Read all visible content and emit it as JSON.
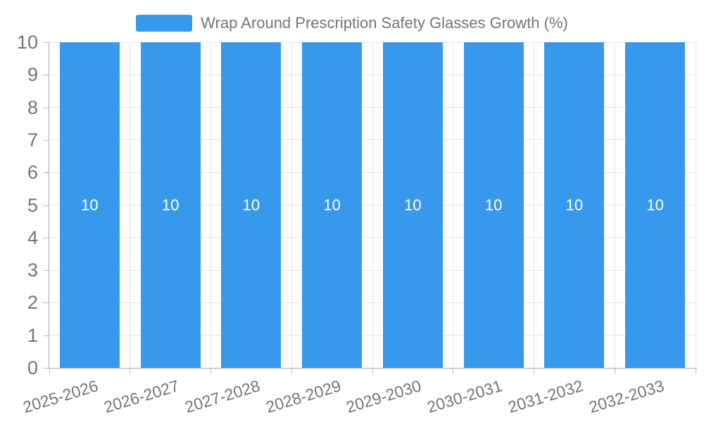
{
  "chart_data": {
    "type": "bar",
    "title": "Wrap Around Prescription Safety Glasses Growth (%)",
    "categories": [
      "2025-2026",
      "2026-2027",
      "2027-2028",
      "2028-2029",
      "2029-2030",
      "2030-2031",
      "2031-2032",
      "2032-2033"
    ],
    "series": [
      {
        "name": "Wrap Around Prescription Safety Glasses Growth (%)",
        "values": [
          10,
          10,
          10,
          10,
          10,
          10,
          10,
          10
        ]
      }
    ],
    "bar_labels": [
      "10",
      "10",
      "10",
      "10",
      "10",
      "10",
      "10",
      "10"
    ],
    "xlabel": "",
    "ylabel": "",
    "ylim": [
      0,
      10
    ],
    "y_ticks": [
      0,
      1,
      2,
      3,
      4,
      5,
      6,
      7,
      8,
      9,
      10
    ],
    "grid": true,
    "legend_position": "top-center",
    "colors": {
      "bar": "#3899EC",
      "bar_label": "#FFFFFF",
      "axis": "#A8A8A8",
      "tick": "#BDBDBD",
      "grid": "#E5E5E5",
      "tick_label": "#757575",
      "title": "#757575",
      "background": "#FFFFFF"
    }
  }
}
